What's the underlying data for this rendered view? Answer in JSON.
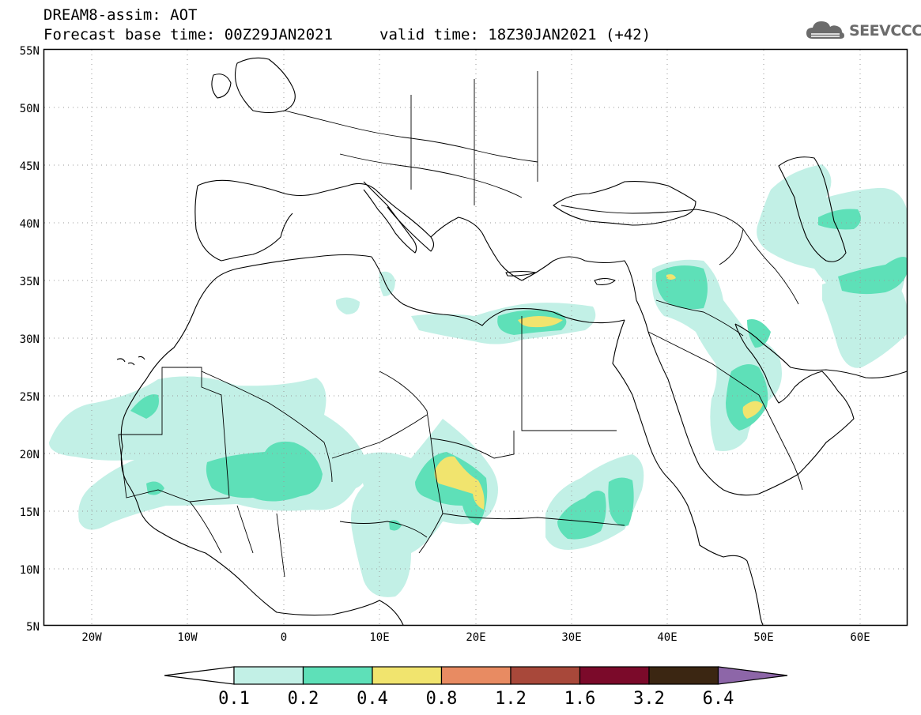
{
  "header": {
    "title": "DREAM8-assim: AOT",
    "base_time": "Forecast base time: 00Z29JAN2021",
    "valid_time": "valid time: 18Z30JAN2021 (+42)"
  },
  "logo": {
    "text": "SEEVCCC",
    "icon": "cloud-icon",
    "color": "#6b6b6b"
  },
  "map": {
    "lat_labels": [
      "55N",
      "50N",
      "45N",
      "40N",
      "35N",
      "30N",
      "25N",
      "20N",
      "15N",
      "10N",
      "5N"
    ],
    "lon_labels": [
      "20W",
      "10W",
      "0",
      "10E",
      "20E",
      "30E",
      "40E",
      "50E",
      "60E"
    ],
    "grid": "dotted",
    "coastline_color": "#000000"
  },
  "colorbar": {
    "thresholds": [
      "0.1",
      "0.2",
      "0.4",
      "0.8",
      "1.2",
      "1.6",
      "3.2",
      "6.4"
    ],
    "colors": [
      "#ffffff",
      "#c2f0e6",
      "#5ee0b8",
      "#f1e46e",
      "#e88b62",
      "#a8483a",
      "#7b0a2a",
      "#3b2612",
      "#8d66a8"
    ]
  }
}
